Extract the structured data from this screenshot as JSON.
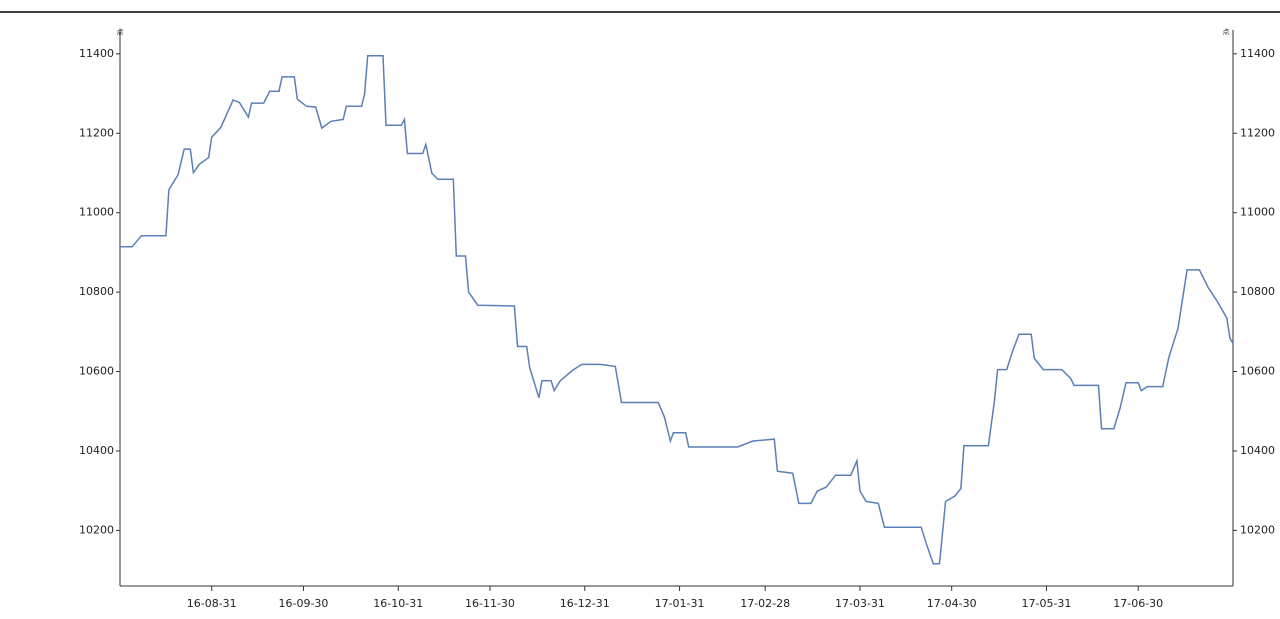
{
  "chart_data": {
    "type": "line",
    "y_unit": "点",
    "x": [
      "16-08-01",
      "16-08-05",
      "16-08-08",
      "16-08-16",
      "16-08-17",
      "16-08-20",
      "16-08-22",
      "16-08-24",
      "16-08-25",
      "16-08-27",
      "16-08-30",
      "16-08-31",
      "16-09-03",
      "16-09-07",
      "16-09-09",
      "16-09-12",
      "16-09-13",
      "16-09-17",
      "16-09-19",
      "16-09-22",
      "16-09-23",
      "16-09-27",
      "16-09-28",
      "16-10-01",
      "16-10-04",
      "16-10-06",
      "16-10-09",
      "16-10-13",
      "16-10-14",
      "16-10-19",
      "16-10-20",
      "16-10-21",
      "16-10-26",
      "16-10-27",
      "16-11-01",
      "16-11-02",
      "16-11-03",
      "16-11-08",
      "16-11-09",
      "16-11-11",
      "16-11-13",
      "16-11-18",
      "16-11-19",
      "16-11-22",
      "16-11-23",
      "16-11-26",
      "16-12-08",
      "16-12-09",
      "16-12-12",
      "16-12-13",
      "16-12-16",
      "16-12-17",
      "16-12-20",
      "16-12-21",
      "16-12-23",
      "16-12-27",
      "16-12-30",
      "17-01-05",
      "17-01-10",
      "17-01-12",
      "17-01-24",
      "17-01-26",
      "17-01-28",
      "17-01-29",
      "17-02-02",
      "17-02-03",
      "17-02-19",
      "17-02-24",
      "17-03-03",
      "17-03-04",
      "17-03-09",
      "17-03-11",
      "17-03-15",
      "17-03-17",
      "17-03-20",
      "17-03-23",
      "17-03-28",
      "17-03-30",
      "17-03-31",
      "17-04-02",
      "17-04-06",
      "17-04-08",
      "17-04-20",
      "17-04-22",
      "17-04-24",
      "17-04-26",
      "17-04-28",
      "17-05-01",
      "17-05-03",
      "17-05-04",
      "17-05-12",
      "17-05-14",
      "17-05-15",
      "17-05-18",
      "17-05-20",
      "17-05-22",
      "17-05-26",
      "17-05-27",
      "17-05-30",
      "17-06-05",
      "17-06-08",
      "17-06-09",
      "17-06-17",
      "17-06-18",
      "17-06-22",
      "17-06-24",
      "17-06-26",
      "17-06-30",
      "17-07-01",
      "17-07-03",
      "17-07-08",
      "17-07-10",
      "17-07-13",
      "17-07-16",
      "17-07-20",
      "17-07-23",
      "17-07-26",
      "17-07-29",
      "17-07-30",
      "17-07-31"
    ],
    "series": [
      {
        "color": "#5b7fb6",
        "values": [
          10914,
          10914,
          10942,
          10942,
          11058,
          11096,
          11160,
          11160,
          11101,
          11122,
          11139,
          11190,
          11215,
          11284,
          11278,
          11241,
          11276,
          11276,
          11306,
          11306,
          11342,
          11342,
          11286,
          11268,
          11266,
          11213,
          11230,
          11235,
          11268,
          11268,
          11299,
          11395,
          11395,
          11220,
          11220,
          11235,
          11149,
          11149,
          11172,
          11099,
          11084,
          11084,
          10891,
          10891,
          10800,
          10767,
          10765,
          10663,
          10663,
          10610,
          10534,
          10577,
          10577,
          10552,
          10577,
          10603,
          10618,
          10618,
          10613,
          10522,
          10522,
          10486,
          10425,
          10446,
          10446,
          10410,
          10410,
          10425,
          10430,
          10349,
          10344,
          10268,
          10268,
          10299,
          10309,
          10339,
          10339,
          10375,
          10299,
          10273,
          10268,
          10208,
          10208,
          10160,
          10116,
          10116,
          10273,
          10286,
          10306,
          10413,
          10413,
          10527,
          10605,
          10605,
          10653,
          10694,
          10694,
          10633,
          10605,
          10605,
          10582,
          10565,
          10565,
          10456,
          10456,
          10506,
          10572,
          10572,
          10552,
          10562,
          10562,
          10635,
          10709,
          10856,
          10856,
          10810,
          10775,
          10734,
          10684,
          10671
        ]
      }
    ],
    "xlim": [
      "16-08-01",
      "17-07-31"
    ],
    "xticks": [
      "16-08-31",
      "16-09-30",
      "16-10-31",
      "16-11-30",
      "16-12-31",
      "17-01-31",
      "17-02-28",
      "17-03-31",
      "17-04-30",
      "17-05-31",
      "17-06-30"
    ],
    "ylim": [
      10060,
      11460
    ],
    "yticks": [
      10200,
      10400,
      10600,
      10800,
      11000,
      11200,
      11400
    ]
  }
}
